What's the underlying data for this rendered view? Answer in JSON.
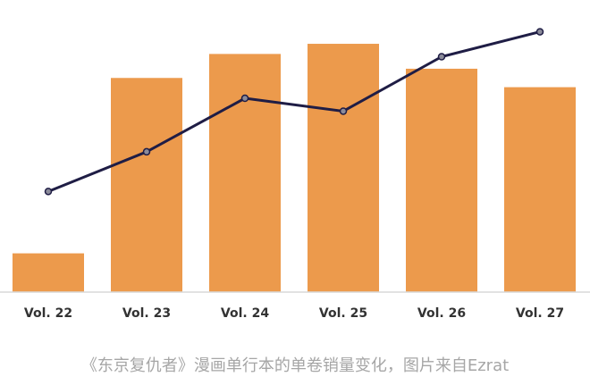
{
  "chart_data": {
    "type": "bar",
    "title": "",
    "xlabel": "",
    "ylabel": "",
    "categories": [
      "Vol. 22",
      "Vol. 23",
      "Vol. 24",
      "Vol. 25",
      "Vol. 26",
      "Vol. 27"
    ],
    "series": [
      {
        "kind": "bar",
        "values": [
          42,
          232,
          258,
          269,
          242,
          222
        ]
      },
      {
        "kind": "line",
        "values": [
          109,
          152,
          210,
          196,
          255,
          282
        ]
      }
    ],
    "ylim": [
      0,
      300
    ],
    "grid": false,
    "legend": "none",
    "colors": {
      "bar": "#ec9a4c",
      "line": "#1f1d45",
      "marker_fill": "#8b8b9a",
      "axis": "#d9d9d9"
    }
  },
  "caption": "《东京复仇者》漫画单行本的单卷销量变化，图片来自Ezrat"
}
